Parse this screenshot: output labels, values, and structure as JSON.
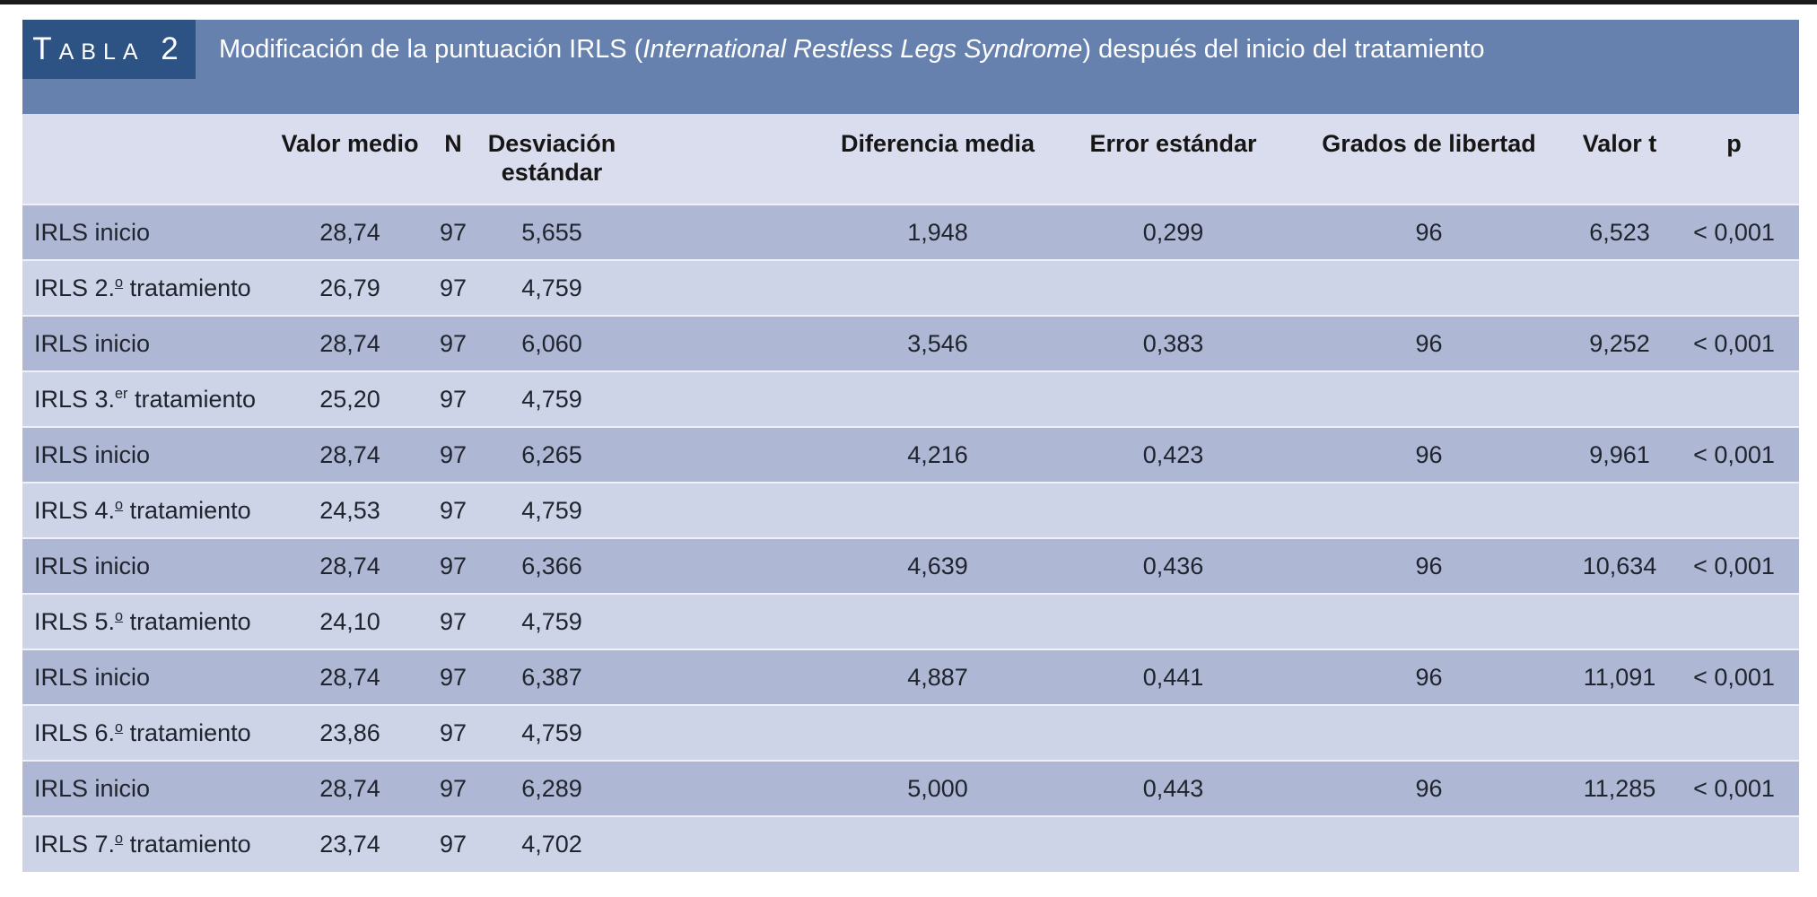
{
  "colors": {
    "rule": "#1b1b1b",
    "tag_box": "#2d5284",
    "banner": "#6781ae",
    "header_bg": "#dadded",
    "row_dark": "#aeb8d4",
    "row_light": "#ced4e7",
    "text": "#20242e"
  },
  "tag": "Tabla 2",
  "title": {
    "pre": "Modificación de la puntuación IRLS (",
    "italic": "International Restless Legs Syndrome",
    "post": ") después del inicio del tratamiento"
  },
  "table": {
    "headers": {
      "label": "",
      "valor": "Valor medio",
      "n": "N",
      "desv": "Desviación estándar",
      "dif": "Diferencia media",
      "error": "Error estándar",
      "grados": "Grados de libertad",
      "t": "Valor t",
      "p": "p"
    },
    "rows": [
      {
        "label": {
          "pre": "IRLS inicio",
          "sup": "",
          "post": "",
          "sup_underline": false
        },
        "valor": "28,74",
        "n": "97",
        "desv": "5,655",
        "dif": "1,948",
        "error": "0,299",
        "grados": "96",
        "t": "6,523",
        "p": "< 0,001"
      },
      {
        "label": {
          "pre": "IRLS 2.",
          "sup": "o",
          "post": " tratamiento",
          "sup_underline": true
        },
        "valor": "26,79",
        "n": "97",
        "desv": "4,759",
        "dif": "",
        "error": "",
        "grados": "",
        "t": "",
        "p": ""
      },
      {
        "label": {
          "pre": "IRLS inicio",
          "sup": "",
          "post": "",
          "sup_underline": false
        },
        "valor": "28,74",
        "n": "97",
        "desv": "6,060",
        "dif": "3,546",
        "error": "0,383",
        "grados": "96",
        "t": "9,252",
        "p": "< 0,001"
      },
      {
        "label": {
          "pre": "IRLS 3.",
          "sup": "er",
          "post": " tratamiento",
          "sup_underline": false
        },
        "valor": "25,20",
        "n": "97",
        "desv": "4,759",
        "dif": "",
        "error": "",
        "grados": "",
        "t": "",
        "p": ""
      },
      {
        "label": {
          "pre": "IRLS inicio",
          "sup": "",
          "post": "",
          "sup_underline": false
        },
        "valor": "28,74",
        "n": "97",
        "desv": "6,265",
        "dif": "4,216",
        "error": "0,423",
        "grados": "96",
        "t": "9,961",
        "p": "< 0,001"
      },
      {
        "label": {
          "pre": "IRLS 4.",
          "sup": "o",
          "post": " tratamiento",
          "sup_underline": true
        },
        "valor": "24,53",
        "n": "97",
        "desv": "4,759",
        "dif": "",
        "error": "",
        "grados": "",
        "t": "",
        "p": ""
      },
      {
        "label": {
          "pre": "IRLS inicio",
          "sup": "",
          "post": "",
          "sup_underline": false
        },
        "valor": "28,74",
        "n": "97",
        "desv": "6,366",
        "dif": "4,639",
        "error": "0,436",
        "grados": "96",
        "t": "10,634",
        "p": "< 0,001"
      },
      {
        "label": {
          "pre": "IRLS 5.",
          "sup": "o",
          "post": " tratamiento",
          "sup_underline": true
        },
        "valor": "24,10",
        "n": "97",
        "desv": "4,759",
        "dif": "",
        "error": "",
        "grados": "",
        "t": "",
        "p": ""
      },
      {
        "label": {
          "pre": "IRLS inicio",
          "sup": "",
          "post": "",
          "sup_underline": false
        },
        "valor": "28,74",
        "n": "97",
        "desv": "6,387",
        "dif": "4,887",
        "error": "0,441",
        "grados": "96",
        "t": "11,091",
        "p": "< 0,001"
      },
      {
        "label": {
          "pre": "IRLS 6.",
          "sup": "o",
          "post": " tratamiento",
          "sup_underline": true
        },
        "valor": "23,86",
        "n": "97",
        "desv": "4,759",
        "dif": "",
        "error": "",
        "grados": "",
        "t": "",
        "p": ""
      },
      {
        "label": {
          "pre": "IRLS inicio",
          "sup": "",
          "post": "",
          "sup_underline": false
        },
        "valor": "28,74",
        "n": "97",
        "desv": "6,289",
        "dif": "5,000",
        "error": "0,443",
        "grados": "96",
        "t": "11,285",
        "p": "< 0,001"
      },
      {
        "label": {
          "pre": "IRLS 7.",
          "sup": "o",
          "post": " tratamiento",
          "sup_underline": true
        },
        "valor": "23,74",
        "n": "97",
        "desv": "4,702",
        "dif": "",
        "error": "",
        "grados": "",
        "t": "",
        "p": ""
      }
    ]
  }
}
